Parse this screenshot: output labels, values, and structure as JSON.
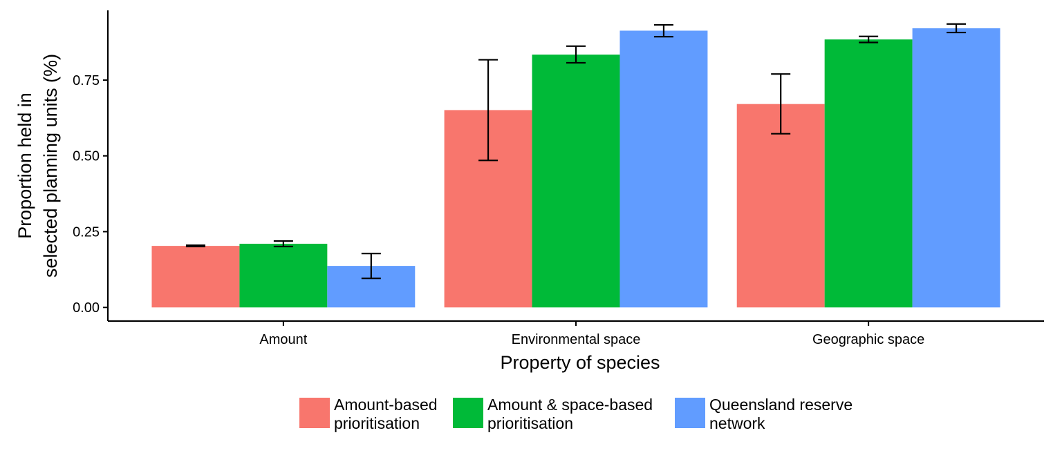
{
  "chart_data": {
    "type": "bar",
    "title": "",
    "xlabel": "Property of species",
    "ylabel_lines": [
      "Proportion held in",
      "selected planning units (%)"
    ],
    "categories": [
      "Amount",
      "Environmental space",
      "Geographic space"
    ],
    "yticks": [
      "0.00",
      "0.25",
      "0.50",
      "0.75"
    ],
    "ytick_values": [
      0,
      0.25,
      0.5,
      0.75
    ],
    "ylim": [
      -0.045,
      0.98
    ],
    "grid": false,
    "legend_position": "bottom",
    "series": [
      {
        "name_lines": [
          "Amount-based",
          "prioritisation"
        ],
        "color": "#F8766D",
        "values": [
          0.203,
          0.651,
          0.671
        ],
        "err_low": [
          0.201,
          0.485,
          0.573
        ],
        "err_high": [
          0.205,
          0.817,
          0.77
        ]
      },
      {
        "name_lines": [
          "Amount & space-based",
          "prioritisation"
        ],
        "color": "#00BA38",
        "values": [
          0.21,
          0.834,
          0.884
        ],
        "err_low": [
          0.201,
          0.807,
          0.874
        ],
        "err_high": [
          0.219,
          0.862,
          0.894
        ]
      },
      {
        "name_lines": [
          "Queensland reserve",
          "network"
        ],
        "color": "#619CFF",
        "values": [
          0.137,
          0.913,
          0.921
        ],
        "err_low": [
          0.096,
          0.893,
          0.907
        ],
        "err_high": [
          0.178,
          0.932,
          0.935
        ]
      }
    ]
  }
}
